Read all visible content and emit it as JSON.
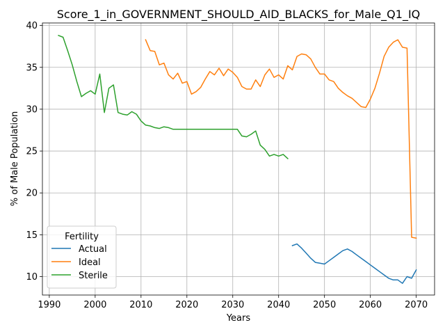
{
  "chart_data": {
    "type": "line",
    "title": "Score_1_in_GOVERNMENT_SHOULD_AID_BLACKS_for_Male_Q1_IQ",
    "xlabel": "Years",
    "ylabel": "% of Male Population",
    "xlim": [
      1988.5,
      2074
    ],
    "ylim": [
      7.8,
      40.3
    ],
    "xticks": [
      1990,
      2000,
      2010,
      2020,
      2030,
      2040,
      2050,
      2060,
      2070
    ],
    "yticks": [
      10,
      15,
      20,
      25,
      30,
      35,
      40
    ],
    "grid": true,
    "legend": {
      "title": "Fertility",
      "placement": "lower-left"
    },
    "series": [
      {
        "name": "Actual",
        "color": "#1f77b4",
        "x": [
          2043,
          2044,
          2045,
          2046,
          2047,
          2048,
          2049,
          2050,
          2051,
          2052,
          2053,
          2054,
          2055,
          2056,
          2057,
          2058,
          2059,
          2060,
          2061,
          2062,
          2063,
          2064,
          2065,
          2066,
          2067,
          2068,
          2069,
          2070
        ],
        "y": [
          13.7,
          13.9,
          13.4,
          12.8,
          12.2,
          11.7,
          11.6,
          11.5,
          11.9,
          12.3,
          12.7,
          13.1,
          13.3,
          13.0,
          12.6,
          12.2,
          11.8,
          11.4,
          11.0,
          10.6,
          10.2,
          9.8,
          9.6,
          9.6,
          9.2,
          10.0,
          9.8,
          10.8
        ]
      },
      {
        "name": "Ideal",
        "color": "#ff7f0e",
        "x": [
          2011,
          2012,
          2013,
          2014,
          2015,
          2016,
          2017,
          2018,
          2019,
          2020,
          2021,
          2022,
          2023,
          2024,
          2025,
          2026,
          2027,
          2028,
          2029,
          2030,
          2031,
          2032,
          2033,
          2034,
          2035,
          2036,
          2037,
          2038,
          2039,
          2040,
          2041,
          2042,
          2043,
          2044,
          2045,
          2046,
          2047,
          2048,
          2049,
          2050,
          2051,
          2052,
          2053,
          2054,
          2055,
          2056,
          2057,
          2058,
          2059,
          2060,
          2061,
          2062,
          2063,
          2064,
          2065,
          2066,
          2067,
          2068,
          2069,
          2070
        ],
        "y": [
          38.3,
          37.0,
          36.9,
          35.3,
          35.5,
          34.1,
          33.6,
          34.3,
          33.1,
          33.3,
          31.8,
          32.1,
          32.6,
          33.6,
          34.5,
          34.1,
          34.9,
          34.0,
          34.8,
          34.4,
          33.8,
          32.7,
          32.4,
          32.4,
          33.5,
          32.7,
          34.1,
          34.8,
          33.8,
          34.1,
          33.6,
          35.2,
          34.7,
          36.3,
          36.6,
          36.5,
          36.0,
          35.0,
          34.2,
          34.2,
          33.5,
          33.3,
          32.5,
          32.0,
          31.6,
          31.3,
          30.8,
          30.3,
          30.2,
          31.2,
          32.5,
          34.3,
          36.3,
          37.4,
          38.0,
          38.3,
          37.4,
          37.3,
          14.7,
          14.6
        ]
      },
      {
        "name": "Sterile",
        "color": "#2ca02c",
        "x": [
          1992,
          1993,
          1994,
          1995,
          1996,
          1997,
          1998,
          1999,
          2000,
          2001,
          2002,
          2003,
          2004,
          2005,
          2006,
          2007,
          2008,
          2009,
          2010,
          2011,
          2012,
          2013,
          2014,
          2015,
          2016,
          2017,
          2018,
          2019,
          2020,
          2021,
          2022,
          2023,
          2024,
          2025,
          2026,
          2027,
          2028,
          2029,
          2030,
          2031,
          2032,
          2033,
          2034,
          2035,
          2036,
          2037,
          2038,
          2039,
          2040,
          2041,
          2042
        ],
        "y": [
          38.8,
          38.6,
          37.0,
          35.3,
          33.3,
          31.5,
          31.9,
          32.2,
          31.8,
          34.2,
          29.6,
          32.5,
          32.9,
          29.6,
          29.4,
          29.3,
          29.7,
          29.4,
          28.6,
          28.1,
          28.0,
          27.8,
          27.7,
          27.9,
          27.8,
          27.6,
          27.6,
          27.6,
          27.6,
          27.6,
          27.6,
          27.6,
          27.6,
          27.6,
          27.6,
          27.6,
          27.6,
          27.6,
          27.6,
          27.6,
          26.8,
          26.7,
          27.0,
          27.4,
          25.7,
          25.2,
          24.4,
          24.6,
          24.4,
          24.6,
          24.1
        ]
      }
    ]
  }
}
